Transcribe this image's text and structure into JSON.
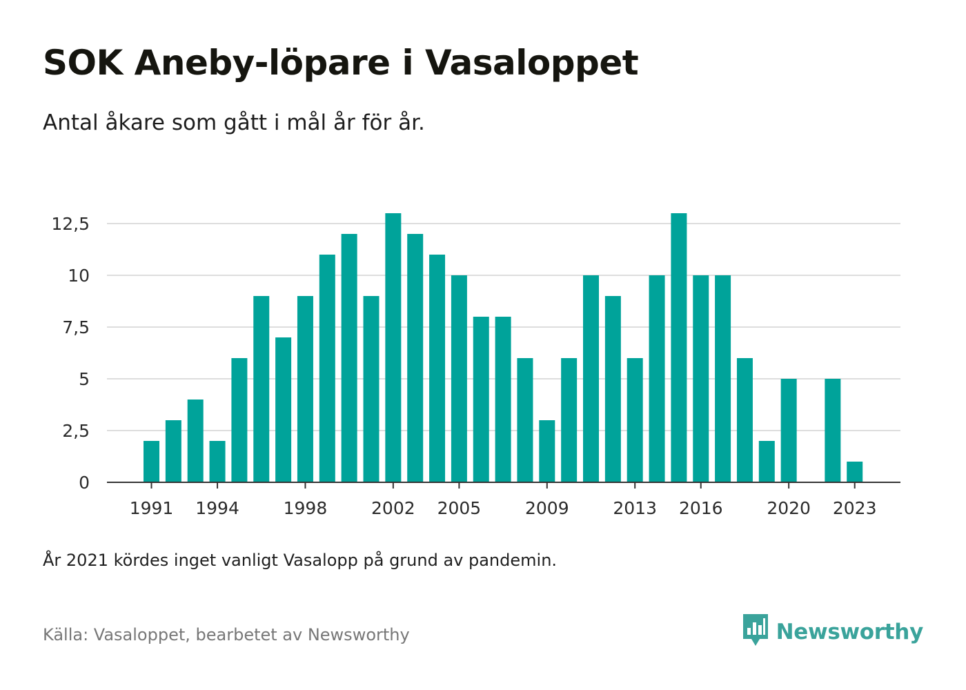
{
  "header": {
    "title": "SOK Aneby-löpare i Vasaloppet",
    "subtitle": "Antal åkare som gått i mål år för år."
  },
  "footer": {
    "note": "År 2021 kördes inget vanligt Vasalopp på grund av pandemin.",
    "source": "Källa: Vasaloppet, bearbetet av Newsworthy",
    "brand": "Newsworthy"
  },
  "colors": {
    "bar": "#00a39a",
    "grid": "#dddddd",
    "axis": "#333333",
    "brand": "#3aa39b"
  },
  "icons": {
    "brand_logo": "newsworthy-logo-icon"
  },
  "chart_data": {
    "type": "bar",
    "title": "SOK Aneby-löpare i Vasaloppet",
    "subtitle": "Antal åkare som gått i mål år för år.",
    "xlabel": "",
    "ylabel": "",
    "ylim": [
      0,
      13.5
    ],
    "yticks": [
      0,
      2.5,
      5,
      7.5,
      10,
      12.5
    ],
    "ytick_labels": [
      "0",
      "2,5",
      "5",
      "7,5",
      "10",
      "12,5"
    ],
    "xticks": [
      1991,
      1994,
      1998,
      2002,
      2005,
      2009,
      2013,
      2016,
      2020,
      2023
    ],
    "grid": true,
    "legend": "none",
    "categories": [
      1991,
      1992,
      1993,
      1994,
      1995,
      1996,
      1997,
      1998,
      1999,
      2000,
      2001,
      2002,
      2003,
      2004,
      2005,
      2006,
      2007,
      2008,
      2009,
      2010,
      2011,
      2012,
      2013,
      2014,
      2015,
      2016,
      2017,
      2018,
      2019,
      2020,
      2021,
      2022,
      2023
    ],
    "values": [
      2,
      3,
      4,
      2,
      6,
      9,
      7,
      9,
      11,
      12,
      9,
      13,
      12,
      11,
      10,
      8,
      8,
      6,
      3,
      6,
      10,
      9,
      6,
      10,
      13,
      10,
      10,
      6,
      2,
      5,
      null,
      5,
      1
    ]
  }
}
